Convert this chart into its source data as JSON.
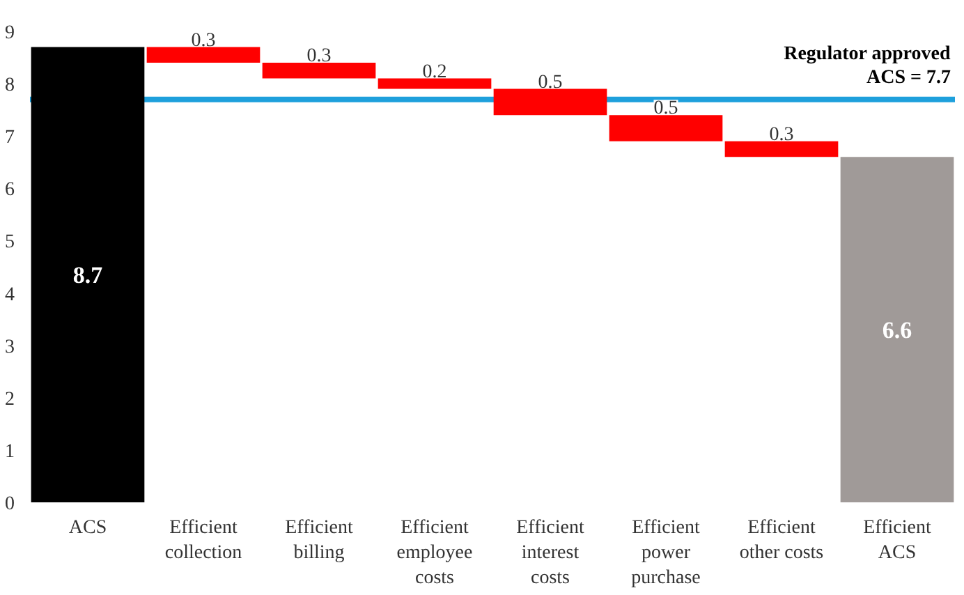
{
  "chart_data": {
    "type": "bar",
    "categories": [
      "ACS",
      "Efficient collection",
      "Efficient billing",
      "Efficient employee costs",
      "Efficient interest costs",
      "Efficient power purchase",
      "Efficient other costs",
      "Efficient ACS"
    ],
    "values": [
      8.7,
      -0.3,
      -0.3,
      -0.2,
      -0.5,
      -0.5,
      -0.3,
      6.6
    ],
    "base": [
      0,
      8.7,
      8.4,
      8.1,
      7.9,
      7.4,
      6.9,
      0
    ],
    "colors": [
      "#000000",
      "#ff0000",
      "#ff0000",
      "#ff0000",
      "#ff0000",
      "#ff0000",
      "#ff0000",
      "#a09a98"
    ],
    "value_labels": [
      "8.7",
      "0.3",
      "0.3",
      "0.2",
      "0.5",
      "0.5",
      "0.3",
      "6.6"
    ],
    "ylim": [
      0,
      9
    ],
    "yticks": [
      0,
      1,
      2,
      3,
      4,
      5,
      6,
      7,
      8,
      9
    ],
    "grid": false,
    "ref_lines": [
      {
        "axis": "y",
        "value": 7.7,
        "label": "Regulator approved\nACS = 7.7",
        "color": "#1ea0dc",
        "line_style": "solid"
      }
    ]
  }
}
